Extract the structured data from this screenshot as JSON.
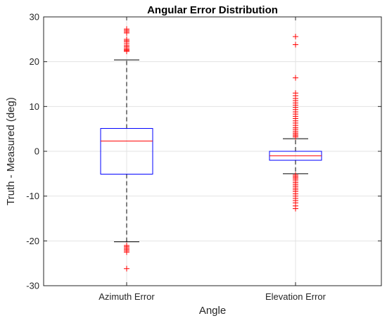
{
  "chart_data": {
    "type": "box",
    "title": "Angular Error Distribution",
    "xlabel": "Angle",
    "ylabel": "Truth - Measured (deg)",
    "ylim": [
      -30,
      30
    ],
    "yticks": [
      -30,
      -20,
      -10,
      0,
      10,
      20,
      30
    ],
    "grid": true,
    "categories": [
      "Azimuth Error",
      "Elevation Error"
    ],
    "colors": {
      "box": "#0000ff",
      "median": "#ff0000",
      "outlier": "#ff0000",
      "whisker": "#000000"
    },
    "boxes": [
      {
        "name": "Azimuth Error",
        "q1": -5.1,
        "median": 2.3,
        "q3": 5.1,
        "whisker_low": -20.2,
        "whisker_high": 20.4,
        "outliers": [
          27.3,
          27.0,
          26.7,
          26.4,
          25.0,
          24.7,
          24.4,
          24.0,
          23.6,
          23.3,
          23.0,
          22.7,
          22.5,
          22.3,
          -21.0,
          -21.3,
          -21.6,
          -21.9,
          -22.2,
          -22.5,
          -26.2
        ]
      },
      {
        "name": "Elevation Error",
        "q1": -2.0,
        "median": -1.0,
        "q3": 0.0,
        "whisker_low": -5.0,
        "whisker_high": 2.8,
        "outliers": [
          25.6,
          23.8,
          16.4,
          13.0,
          12.4,
          11.8,
          11.3,
          10.8,
          10.3,
          9.8,
          9.3,
          8.8,
          8.3,
          7.8,
          7.3,
          6.8,
          6.3,
          5.8,
          5.3,
          4.9,
          4.5,
          4.1,
          3.8,
          3.5,
          3.2,
          -5.3,
          -5.6,
          -5.9,
          -6.2,
          -6.6,
          -7.0,
          -7.4,
          -7.8,
          -8.2,
          -8.6,
          -9.0,
          -9.5,
          -10.0,
          -10.5,
          -11.0,
          -11.5,
          -12.2,
          -12.8
        ]
      }
    ]
  }
}
